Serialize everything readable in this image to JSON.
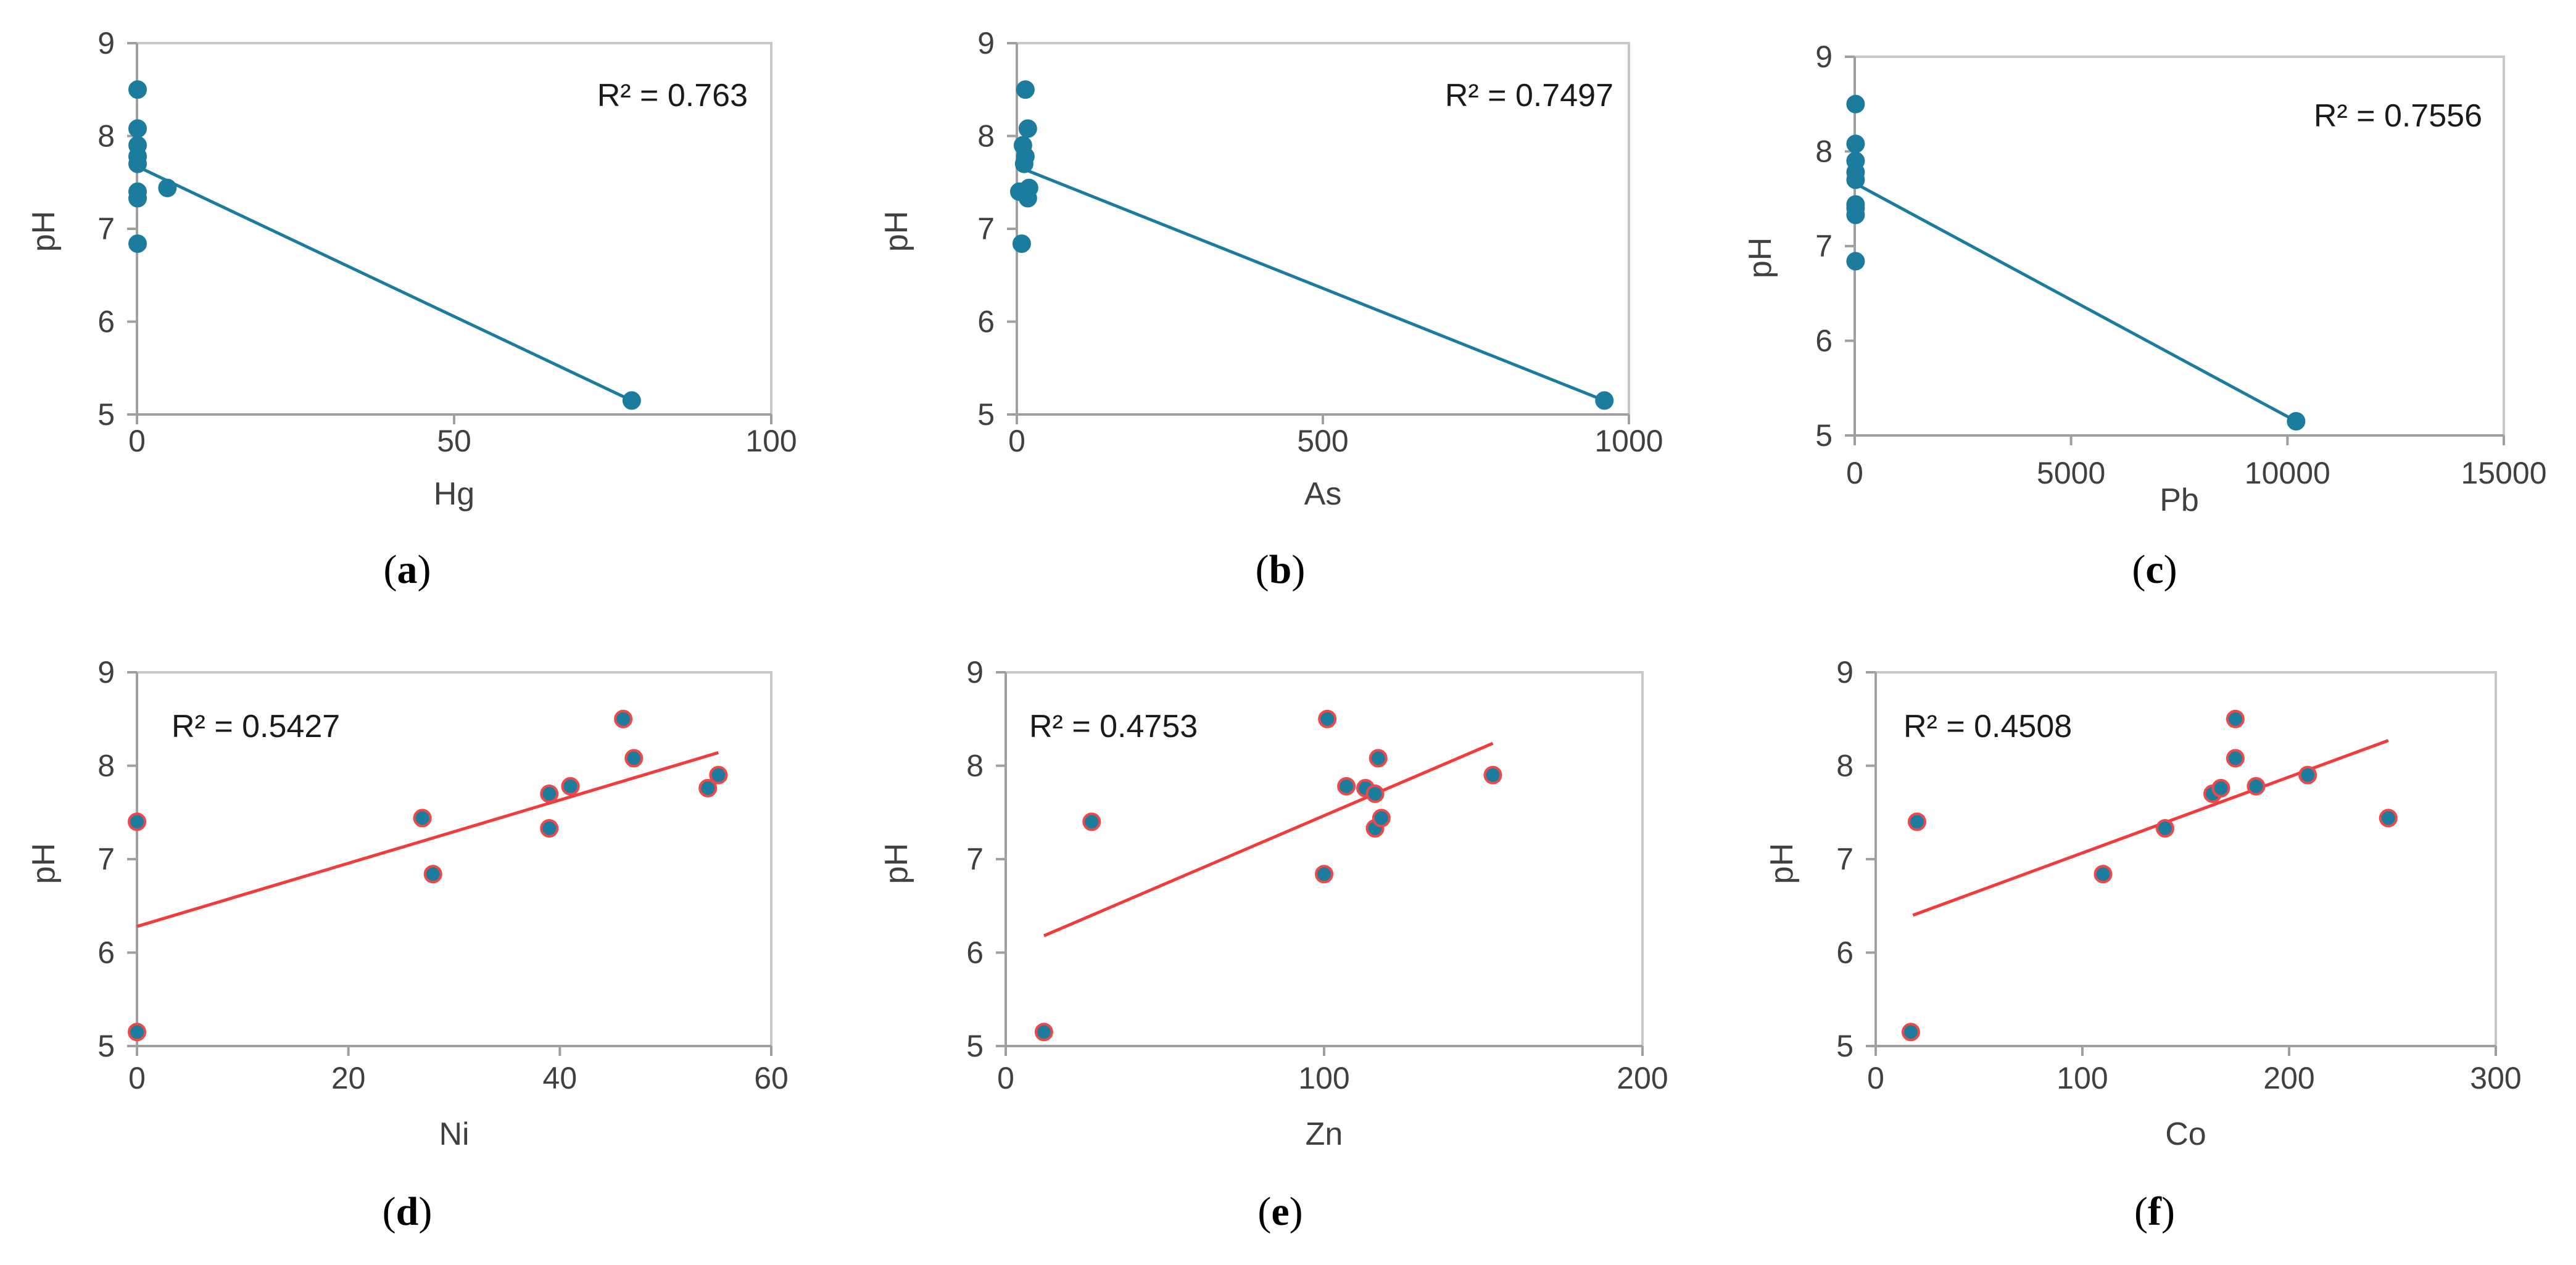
{
  "chart_data": [
    {
      "type": "scatter",
      "panel": "a",
      "xlabel": "Hg",
      "ylabel": "pH",
      "r2_label": "R² = 0.763",
      "xlim": [
        0,
        100
      ],
      "ylim": [
        5,
        9
      ],
      "xticks": [
        0,
        50,
        100
      ],
      "yticks": [
        5,
        6,
        7,
        8,
        9
      ],
      "point_color": "#1B7C9E",
      "point_edge": "#1B7C9E",
      "trend_color": "#1B7C9E",
      "points": [
        [
          0.1,
          8.5
        ],
        [
          0.1,
          8.08
        ],
        [
          0.1,
          7.9
        ],
        [
          0.1,
          7.78
        ],
        [
          0.1,
          7.7
        ],
        [
          0.1,
          7.4
        ],
        [
          0.1,
          7.33
        ],
        [
          0.1,
          6.84
        ],
        [
          4.8,
          7.44
        ],
        [
          78,
          5.15
        ]
      ],
      "trendline": [
        [
          0.1,
          7.67
        ],
        [
          78,
          5.15
        ]
      ]
    },
    {
      "type": "scatter",
      "panel": "b",
      "xlabel": "As",
      "ylabel": "pH",
      "r2_label": "R² = 0.7497",
      "xlim": [
        0,
        1000
      ],
      "ylim": [
        5,
        9
      ],
      "xticks": [
        0,
        500,
        1000
      ],
      "yticks": [
        5,
        6,
        7,
        8,
        9
      ],
      "point_color": "#1B7C9E",
      "point_edge": "#1B7C9E",
      "trend_color": "#1B7C9E",
      "points": [
        [
          14,
          8.5
        ],
        [
          18,
          8.08
        ],
        [
          10,
          7.9
        ],
        [
          14,
          7.78
        ],
        [
          12,
          7.7
        ],
        [
          20,
          7.44
        ],
        [
          4,
          7.4
        ],
        [
          18,
          7.33
        ],
        [
          8,
          6.84
        ],
        [
          960,
          5.15
        ]
      ],
      "trendline": [
        [
          5,
          7.66
        ],
        [
          960,
          5.15
        ]
      ]
    },
    {
      "type": "scatter",
      "panel": "c",
      "xlabel": "Pb",
      "ylabel": "pH",
      "r2_label": "R² = 0.7556",
      "xlim": [
        0,
        15000
      ],
      "ylim": [
        5,
        9
      ],
      "xticks": [
        0,
        5000,
        10000,
        15000
      ],
      "yticks": [
        5,
        6,
        7,
        8,
        9
      ],
      "point_color": "#1B7C9E",
      "point_edge": "#1B7C9E",
      "trend_color": "#1B7C9E",
      "points": [
        [
          20,
          8.5
        ],
        [
          20,
          8.08
        ],
        [
          20,
          7.9
        ],
        [
          20,
          7.78
        ],
        [
          20,
          7.7
        ],
        [
          20,
          7.44
        ],
        [
          20,
          7.4
        ],
        [
          20,
          7.33
        ],
        [
          20,
          6.84
        ],
        [
          10200,
          5.15
        ]
      ],
      "trendline": [
        [
          20,
          7.66
        ],
        [
          10200,
          5.15
        ]
      ]
    },
    {
      "type": "scatter",
      "panel": "d",
      "xlabel": "Ni",
      "ylabel": "pH",
      "r2_label": "R² = 0.5427",
      "xlim": [
        0,
        60
      ],
      "ylim": [
        5,
        9
      ],
      "xticks": [
        0,
        20,
        40,
        60
      ],
      "yticks": [
        5,
        6,
        7,
        8,
        9
      ],
      "point_color": "#1B7C9E",
      "point_edge": "#F04848",
      "trend_color": "#F03C3C",
      "points": [
        [
          0,
          7.4
        ],
        [
          0,
          5.15
        ],
        [
          27,
          7.44
        ],
        [
          28,
          6.84
        ],
        [
          39,
          7.7
        ],
        [
          39,
          7.33
        ],
        [
          41,
          7.78
        ],
        [
          46,
          8.5
        ],
        [
          47,
          8.08
        ],
        [
          54,
          7.76
        ],
        [
          55,
          7.9
        ]
      ],
      "trendline": [
        [
          0,
          6.28
        ],
        [
          55,
          8.14
        ]
      ]
    },
    {
      "type": "scatter",
      "panel": "e",
      "xlabel": "Zn",
      "ylabel": "pH",
      "r2_label": "R² = 0.4753",
      "xlim": [
        0,
        200
      ],
      "ylim": [
        5,
        9
      ],
      "xticks": [
        0,
        100,
        200
      ],
      "yticks": [
        5,
        6,
        7,
        8,
        9
      ],
      "point_color": "#1B7C9E",
      "point_edge": "#F04848",
      "trend_color": "#F03C3C",
      "points": [
        [
          12,
          5.15
        ],
        [
          27,
          7.4
        ],
        [
          100,
          6.84
        ],
        [
          101,
          8.5
        ],
        [
          107,
          7.78
        ],
        [
          113,
          7.76
        ],
        [
          116,
          7.33
        ],
        [
          116,
          7.7
        ],
        [
          117,
          8.08
        ],
        [
          118,
          7.44
        ],
        [
          153,
          7.9
        ]
      ],
      "trendline": [
        [
          12,
          6.18
        ],
        [
          153,
          8.24
        ]
      ]
    },
    {
      "type": "scatter",
      "panel": "f",
      "xlabel": "Co",
      "ylabel": "pH",
      "r2_label": "R² = 0.4508",
      "xlim": [
        0,
        300
      ],
      "ylim": [
        5,
        9
      ],
      "xticks": [
        0,
        100,
        200,
        300
      ],
      "yticks": [
        5,
        6,
        7,
        8,
        9
      ],
      "point_color": "#1B7C9E",
      "point_edge": "#F04848",
      "trend_color": "#F03C3C",
      "points": [
        [
          17,
          5.15
        ],
        [
          20,
          7.4
        ],
        [
          110,
          6.84
        ],
        [
          140,
          7.33
        ],
        [
          163,
          7.7
        ],
        [
          167,
          7.76
        ],
        [
          174,
          8.5
        ],
        [
          174,
          8.08
        ],
        [
          184,
          7.78
        ],
        [
          209,
          7.9
        ],
        [
          248,
          7.44
        ]
      ],
      "trendline": [
        [
          18,
          6.4
        ],
        [
          248,
          8.27
        ]
      ]
    }
  ]
}
